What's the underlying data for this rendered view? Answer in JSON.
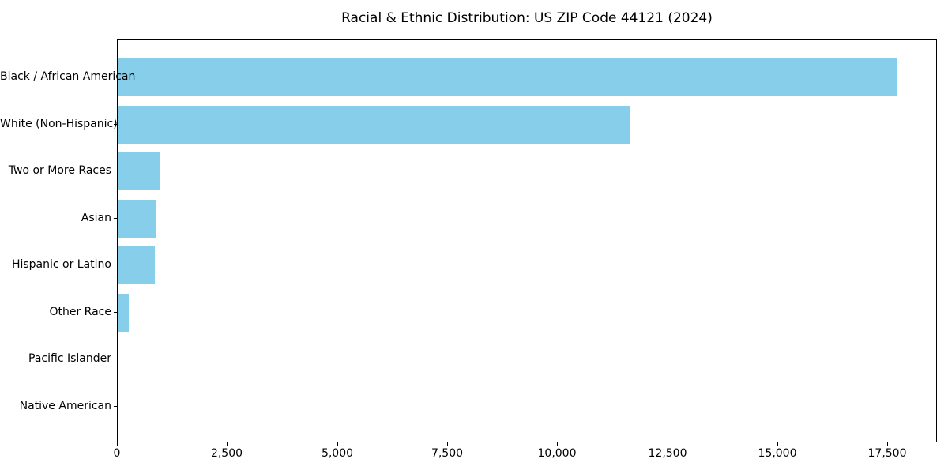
{
  "chart_data": {
    "type": "bar",
    "orientation": "horizontal",
    "title": "Racial & Ethnic Distribution: US ZIP Code 44121 (2024)",
    "categories": [
      "Black / African American",
      "White (Non-Hispanic)",
      "Two or More Races",
      "Asian",
      "Hispanic or Latino",
      "Other Race",
      "Pacific Islander",
      "Native American"
    ],
    "values": [
      17740,
      11670,
      960,
      870,
      840,
      250,
      0,
      0
    ],
    "xlabel": "",
    "ylabel": "",
    "xlim": [
      0,
      18627
    ],
    "x_ticks": [
      0,
      2500,
      5000,
      7500,
      10000,
      12500,
      15000,
      17500
    ],
    "x_tick_labels": [
      "0",
      "2,500",
      "5,000",
      "7,500",
      "10,000",
      "12,500",
      "15,000",
      "17,500"
    ],
    "bar_color": "#87CEEB",
    "background_color": "#ffffff",
    "spine_color": "#000000",
    "grid": false,
    "legend": null
  }
}
